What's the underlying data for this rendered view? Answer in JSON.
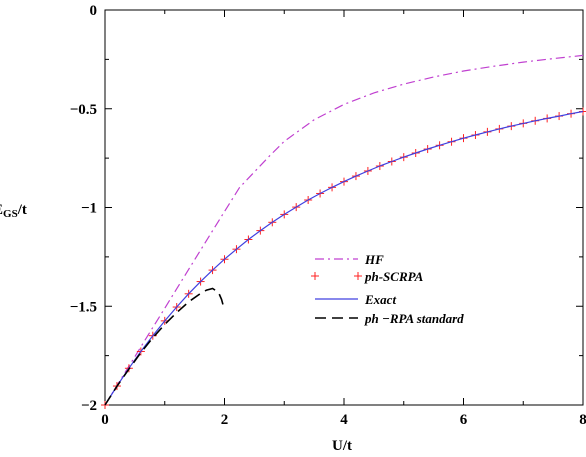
{
  "chart_data": {
    "type": "line",
    "xlabel": "U/t",
    "ylabel_main": "E",
    "ylabel_sub": "GS",
    "ylabel_tail": "/t",
    "xlim": [
      0,
      8
    ],
    "ylim": [
      -2,
      0
    ],
    "x_ticks": [
      {
        "value": 0,
        "label": "0"
      },
      {
        "value": 2,
        "label": "2"
      },
      {
        "value": 4,
        "label": "4"
      },
      {
        "value": 6,
        "label": "6"
      },
      {
        "value": 8,
        "label": "8"
      }
    ],
    "y_ticks": [
      {
        "value": 0,
        "label": "0"
      },
      {
        "value": -0.5,
        "label": "−0.5"
      },
      {
        "value": -1,
        "label": "−1"
      },
      {
        "value": -1.5,
        "label": "−1.5"
      },
      {
        "value": -2,
        "label": "−2"
      }
    ],
    "grid": false,
    "legend_position": "center-right",
    "series": [
      {
        "name": "HF",
        "style": "dash-dot",
        "color": "#c040d0",
        "x": [
          0,
          0.25,
          0.5,
          0.75,
          1.0,
          1.25,
          1.5,
          1.75,
          2.0,
          2.25,
          2.5,
          2.75,
          3.0,
          3.5,
          4.0,
          4.5,
          5.0,
          5.5,
          6.0,
          6.5,
          7.0,
          7.5,
          8.0
        ],
        "y": [
          -2.0,
          -1.877,
          -1.755,
          -1.632,
          -1.51,
          -1.387,
          -1.265,
          -1.142,
          -1.02,
          -0.9,
          -0.82,
          -0.74,
          -0.665,
          -0.556,
          -0.478,
          -0.42,
          -0.375,
          -0.339,
          -0.309,
          -0.285,
          -0.264,
          -0.246,
          -0.23
        ]
      },
      {
        "name": "ph-SCRPA",
        "style": "plus-markers",
        "color": "#ff2020",
        "x": [
          0,
          0.2,
          0.4,
          0.6,
          0.8,
          1.0,
          1.2,
          1.4,
          1.6,
          1.8,
          2.0,
          2.2,
          2.4,
          2.6,
          2.8,
          3.0,
          3.2,
          3.4,
          3.6,
          3.8,
          4.0,
          4.2,
          4.4,
          4.6,
          4.8,
          5.0,
          5.2,
          5.4,
          5.6,
          5.8,
          6.0,
          6.2,
          6.4,
          6.6,
          6.8,
          7.0,
          7.2,
          7.4,
          7.6,
          7.8,
          8.0
        ],
        "y": [
          -2.0,
          -1.904,
          -1.814,
          -1.729,
          -1.649,
          -1.574,
          -1.504,
          -1.437,
          -1.375,
          -1.317,
          -1.262,
          -1.211,
          -1.162,
          -1.117,
          -1.075,
          -1.035,
          -0.998,
          -0.962,
          -0.929,
          -0.898,
          -0.869,
          -0.841,
          -0.815,
          -0.79,
          -0.767,
          -0.745,
          -0.724,
          -0.704,
          -0.685,
          -0.667,
          -0.649,
          -0.633,
          -0.617,
          -0.602,
          -0.588,
          -0.574,
          -0.561,
          -0.549,
          -0.537,
          -0.525,
          -0.514
        ]
      },
      {
        "name": "Exact",
        "style": "solid",
        "color": "#4040e0",
        "x": [
          0,
          0.2,
          0.4,
          0.6,
          0.8,
          1.0,
          1.2,
          1.4,
          1.6,
          1.8,
          2.0,
          2.2,
          2.4,
          2.6,
          2.8,
          3.0,
          3.2,
          3.4,
          3.6,
          3.8,
          4.0,
          4.2,
          4.4,
          4.6,
          4.8,
          5.0,
          5.2,
          5.4,
          5.6,
          5.8,
          6.0,
          6.2,
          6.4,
          6.6,
          6.8,
          7.0,
          7.2,
          7.4,
          7.6,
          7.8,
          8.0
        ],
        "y": [
          -2.0,
          -1.904,
          -1.814,
          -1.729,
          -1.649,
          -1.574,
          -1.504,
          -1.437,
          -1.375,
          -1.317,
          -1.262,
          -1.211,
          -1.162,
          -1.117,
          -1.075,
          -1.035,
          -0.998,
          -0.962,
          -0.929,
          -0.898,
          -0.869,
          -0.841,
          -0.815,
          -0.79,
          -0.767,
          -0.745,
          -0.724,
          -0.704,
          -0.685,
          -0.667,
          -0.649,
          -0.633,
          -0.617,
          -0.602,
          -0.588,
          -0.574,
          -0.561,
          -0.549,
          -0.537,
          -0.525,
          -0.514
        ]
      },
      {
        "name": "ph −RPA standard",
        "style": "long-dash",
        "color": "#000000",
        "x": [
          0,
          0.2,
          0.4,
          0.6,
          0.8,
          1.0,
          1.2,
          1.4,
          1.6,
          1.7,
          1.8,
          1.9,
          1.95,
          2.0
        ],
        "y": [
          -2.0,
          -1.905,
          -1.818,
          -1.735,
          -1.66,
          -1.592,
          -1.532,
          -1.478,
          -1.435,
          -1.418,
          -1.41,
          -1.43,
          -1.465,
          -1.52
        ]
      }
    ]
  }
}
